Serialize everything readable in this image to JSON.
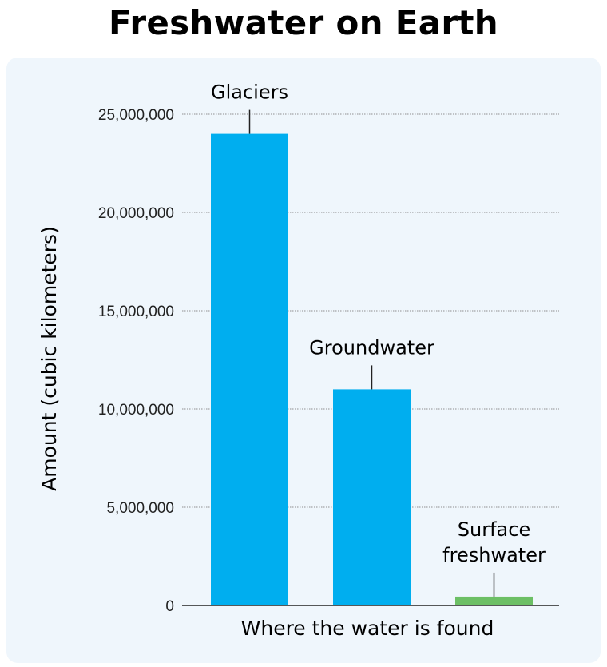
{
  "chart_data": {
    "type": "bar",
    "title": "Freshwater on Earth",
    "xlabel": "Where the water is found",
    "ylabel": "Amount (cubic kilometers)",
    "categories": [
      "Glaciers",
      "Groundwater",
      "Surface freshwater"
    ],
    "category_label_lines": [
      [
        "Glaciers"
      ],
      [
        "Groundwater"
      ],
      [
        "Surface",
        "freshwater"
      ]
    ],
    "values": [
      24000000,
      11000000,
      450000
    ],
    "colors": [
      "#00aeef",
      "#00aeef",
      "#6cbf65"
    ],
    "ylim": [
      0,
      25000000
    ],
    "yticks": [
      0,
      5000000,
      10000000,
      15000000,
      20000000,
      25000000
    ],
    "ytick_labels": [
      "0",
      "5,000,000",
      "10,000,000",
      "15,000,000",
      "20,000,000",
      "25,000,000"
    ],
    "grid": true,
    "background": "#eff6fc"
  }
}
